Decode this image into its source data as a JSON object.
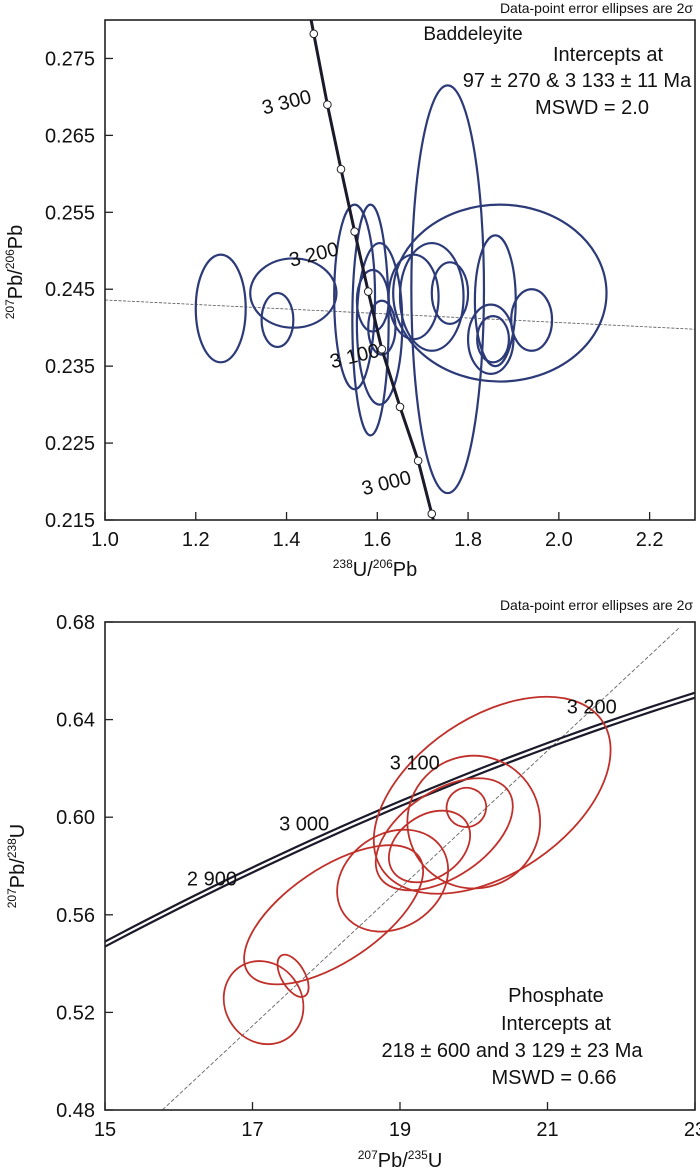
{
  "chart_data": [
    {
      "type": "scatter",
      "subtype": "tera-wasserburg-concordia",
      "error_note": "Data-point error ellipses are 2σ",
      "mineral_label": "Baddeleyite",
      "intercepts_text": "Intercepts at",
      "intercepts_values": "97 ± 270 & 3 133 ± 11 Ma",
      "mswd_text": "MSWD = 2.0",
      "xlabel": {
        "sup1": "238",
        "base1": "U/",
        "sup2": "206",
        "base2": "Pb"
      },
      "ylabel": {
        "sup1": "207",
        "base1": "Pb/",
        "sup2": "206",
        "base2": "Pb"
      },
      "xlim": [
        1.0,
        2.3
      ],
      "ylim": [
        0.215,
        0.28
      ],
      "xticks": [
        1.0,
        1.2,
        1.4,
        1.6,
        1.8,
        2.0,
        2.2
      ],
      "xtick_labels": [
        "1.0",
        "1.2",
        "1.4",
        "1.6",
        "1.8",
        "2.0",
        "2.2"
      ],
      "yticks": [
        0.215,
        0.225,
        0.235,
        0.245,
        0.255,
        0.265,
        0.275
      ],
      "ytick_labels": [
        "0.215",
        "0.225",
        "0.235",
        "0.245",
        "0.255",
        "0.265",
        "0.275"
      ],
      "ellipse_color": "#2c3a78",
      "concordia_color": "#1a1a2a",
      "concordia_points": [
        {
          "x": 1.46,
          "y": 0.2782
        },
        {
          "x": 1.49,
          "y": 0.269
        },
        {
          "x": 1.52,
          "y": 0.2606
        },
        {
          "x": 1.55,
          "y": 0.2525
        },
        {
          "x": 1.58,
          "y": 0.2447
        },
        {
          "x": 1.61,
          "y": 0.2372
        },
        {
          "x": 1.65,
          "y": 0.2297
        },
        {
          "x": 1.69,
          "y": 0.2227
        },
        {
          "x": 1.72,
          "y": 0.2158
        }
      ],
      "age_labels": [
        {
          "text": "3 300",
          "x": 1.35,
          "y": 0.2677
        },
        {
          "text": "3 200",
          "x": 1.41,
          "y": 0.2479
        },
        {
          "text": "3 100",
          "x": 1.5,
          "y": 0.2347
        },
        {
          "text": "3 000",
          "x": 1.57,
          "y": 0.2182
        }
      ],
      "discordia": {
        "x1": 1.0,
        "y1": 0.2436,
        "x2": 2.3,
        "y2": 0.2398
      },
      "ellipses": [
        {
          "cx": 1.255,
          "cy": 0.2425,
          "rx": 0.055,
          "ry": 0.007
        },
        {
          "cx": 1.38,
          "cy": 0.241,
          "rx": 0.035,
          "ry": 0.0035
        },
        {
          "cx": 1.415,
          "cy": 0.2445,
          "rx": 0.095,
          "ry": 0.0045
        },
        {
          "cx": 1.55,
          "cy": 0.244,
          "rx": 0.045,
          "ry": 0.012
        },
        {
          "cx": 1.585,
          "cy": 0.241,
          "rx": 0.04,
          "ry": 0.015
        },
        {
          "cx": 1.605,
          "cy": 0.2405,
          "rx": 0.05,
          "ry": 0.0105
        },
        {
          "cx": 1.59,
          "cy": 0.2435,
          "rx": 0.035,
          "ry": 0.004
        },
        {
          "cx": 1.61,
          "cy": 0.24,
          "rx": 0.03,
          "ry": 0.0035
        },
        {
          "cx": 1.68,
          "cy": 0.244,
          "rx": 0.055,
          "ry": 0.0055
        },
        {
          "cx": 1.72,
          "cy": 0.244,
          "rx": 0.07,
          "ry": 0.007
        },
        {
          "cx": 1.755,
          "cy": 0.245,
          "rx": 0.08,
          "ry": 0.0265
        },
        {
          "cx": 1.76,
          "cy": 0.2445,
          "rx": 0.04,
          "ry": 0.004
        },
        {
          "cx": 1.86,
          "cy": 0.2435,
          "rx": 0.045,
          "ry": 0.0085
        },
        {
          "cx": 1.85,
          "cy": 0.2385,
          "rx": 0.05,
          "ry": 0.0045
        },
        {
          "cx": 1.855,
          "cy": 0.2385,
          "rx": 0.035,
          "ry": 0.003
        },
        {
          "cx": 1.94,
          "cy": 0.241,
          "rx": 0.045,
          "ry": 0.004
        },
        {
          "cx": 1.87,
          "cy": 0.2445,
          "rx": 0.235,
          "ry": 0.0115
        }
      ]
    },
    {
      "type": "scatter",
      "subtype": "wetherill-concordia",
      "error_note": "Data-point error ellipses are 2σ",
      "mineral_label": "Phosphate",
      "intercepts_text": "Intercepts at",
      "intercepts_values": "218 ± 600 and 3 129 ± 23 Ma",
      "mswd_text": "MSWD = 0.66",
      "xlabel": {
        "sup1": "207",
        "base1": "Pb/",
        "sup2": "235",
        "base2": "U"
      },
      "ylabel": {
        "sup1": "207",
        "base1": "Pb/",
        "sup2": "238",
        "base2": "U"
      },
      "xlim": [
        15,
        23
      ],
      "ylim": [
        0.48,
        0.68
      ],
      "xticks": [
        15,
        17,
        19,
        21,
        23
      ],
      "xtick_labels": [
        "15",
        "17",
        "19",
        "21",
        "23"
      ],
      "yticks": [
        0.48,
        0.52,
        0.56,
        0.6,
        0.64,
        0.68
      ],
      "ytick_labels": [
        "0.48",
        "0.52",
        "0.56",
        "0.60",
        "0.64",
        "0.68"
      ],
      "ellipse_color": "#c0302a",
      "concordia_color": "#1a1a2a",
      "age_labels": [
        {
          "text": "2 900",
          "x": 16.45,
          "y": 0.572
        },
        {
          "text": "3 000",
          "x": 17.7,
          "y": 0.5945
        },
        {
          "text": "3 100",
          "x": 19.2,
          "y": 0.6195
        },
        {
          "text": "3 200",
          "x": 21.6,
          "y": 0.6425
        }
      ],
      "discordia": {
        "x1": 15.6,
        "y1": 0.475,
        "x2": 22.8,
        "y2": 0.678
      },
      "ellipses": [
        {
          "cx": 17.15,
          "cy": 0.524,
          "rx": 0.52,
          "ry": 0.0055,
          "angle": -34
        },
        {
          "cx": 17.55,
          "cy": 0.535,
          "rx": 0.16,
          "ry": 0.003,
          "angle": -30
        },
        {
          "cx": 18.1,
          "cy": 0.56,
          "rx": 1.4,
          "ry": 0.006,
          "angle": -34
        },
        {
          "cx": 18.9,
          "cy": 0.574,
          "rx": 0.8,
          "ry": 0.006,
          "angle": -34
        },
        {
          "cx": 19.4,
          "cy": 0.588,
          "rx": 0.6,
          "ry": 0.004,
          "angle": -34
        },
        {
          "cx": 19.6,
          "cy": 0.593,
          "rx": 1.05,
          "ry": 0.0055,
          "angle": -34
        },
        {
          "cx": 19.9,
          "cy": 0.604,
          "rx": 0.27,
          "ry": 0.0025,
          "angle": -30
        },
        {
          "cx": 20.0,
          "cy": 0.598,
          "rx": 0.9,
          "ry": 0.0085,
          "angle": -30
        },
        {
          "cx": 20.25,
          "cy": 0.609,
          "rx": 1.8,
          "ry": 0.01,
          "angle": -34
        }
      ]
    }
  ]
}
